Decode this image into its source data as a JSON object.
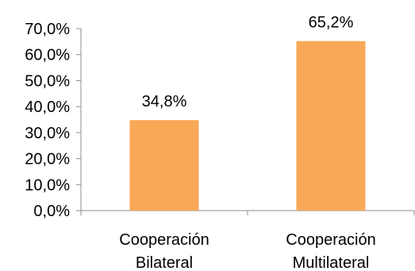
{
  "chart_data": {
    "type": "bar",
    "categories": [
      [
        "Cooperación",
        "Bilateral"
      ],
      [
        "Cooperación",
        "Multilateral"
      ]
    ],
    "values": [
      34.8,
      65.2
    ],
    "data_labels": [
      "34,8%",
      "65,2%"
    ],
    "ylim": [
      0,
      70
    ],
    "yticks": [
      0,
      10,
      20,
      30,
      40,
      50,
      60,
      70
    ],
    "ytick_labels": [
      "0,0%",
      "10,0%",
      "20,0%",
      "30,0%",
      "40,0%",
      "50,0%",
      "60,0%",
      "70,0%"
    ],
    "title": "",
    "xlabel": "",
    "ylabel": "",
    "grid": false,
    "legend": "none",
    "bar_color": "#F9A857",
    "axis_color": "#8C8C8C"
  }
}
